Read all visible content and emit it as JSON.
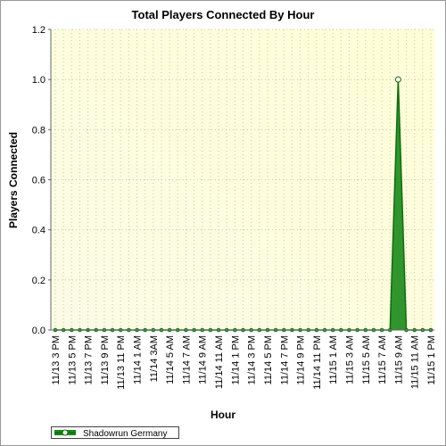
{
  "chart_data": {
    "type": "area",
    "title": "Total Players Connected By Hour",
    "x_label": "Hour",
    "y_label": "Players Connected",
    "categories": [
      "11/13 3 PM",
      null,
      "11/13 5 PM",
      null,
      "11/13 7 PM",
      null,
      "11/13 9 PM",
      null,
      "11/13 11 PM",
      null,
      "11/14 1 AM",
      null,
      "11/14 3AM",
      null,
      "11/14 5 AM",
      null,
      "11/14 7 AM",
      null,
      "11/14 9 AM",
      null,
      "11/14 11 AM",
      null,
      "11/14 1 PM",
      null,
      "11/14 3 PM",
      null,
      "11/14 5 PM",
      null,
      "11/14 7 PM",
      null,
      "11/14 9 PM",
      null,
      "11/14 11 PM",
      null,
      "11/15 1 AM",
      null,
      "11/15 3 AM",
      null,
      "11/15 5 AM",
      null,
      "11/15 7 AM",
      null,
      "11/15 9 AM",
      null,
      "11/15 11 AM",
      null,
      "11/15 1 PM"
    ],
    "series": [
      {
        "name": "Shadowrun Germany",
        "color": "#1a8a1a",
        "values": [
          0,
          0,
          0,
          0,
          0,
          0,
          0,
          0,
          0,
          0,
          0,
          0,
          0,
          0,
          0,
          0,
          0,
          0,
          0,
          0,
          0,
          0,
          0,
          0,
          0,
          0,
          0,
          0,
          0,
          0,
          0,
          0,
          0,
          0,
          0,
          0,
          0,
          0,
          0,
          0,
          0,
          0,
          1,
          0,
          0,
          0,
          0
        ]
      }
    ],
    "ylim": [
      0,
      1.2
    ],
    "yticks": [
      {
        "value": 0,
        "label": "0.0"
      },
      0.2,
      0.4,
      0.6,
      0.8,
      {
        "value": 1,
        "label": "1.0"
      },
      1.2
    ],
    "grid": true,
    "legend": "bottom-left"
  }
}
